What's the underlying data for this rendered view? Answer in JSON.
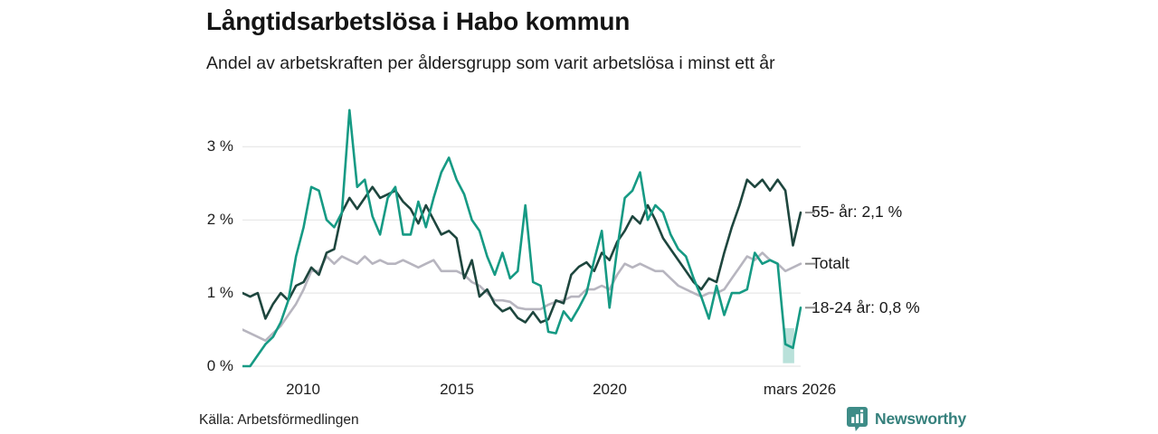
{
  "header": {
    "title": "Långtidsarbetslösa i Habo kommun",
    "subtitle": "Andel av arbetskraften per åldersgrupp som varit arbetslösa i minst ett år"
  },
  "footer": {
    "source": "Källa: Arbetsförmedlingen",
    "brand": "Newsworthy",
    "brand_color": "#35807c",
    "logo_icon": "bar-chart-speech-bubble",
    "logo_fill": "#3e8c87"
  },
  "chart_data": {
    "type": "line",
    "x_start": 2008.0,
    "x_step": 0.25,
    "xlim": [
      2008.0,
      2026.25
    ],
    "ylim": [
      0,
      3.77
    ],
    "grid": true,
    "grid_color": "#e2e2e2",
    "connector_color": "#8f8f8f",
    "legend_position": "right-end-labels",
    "yticks": [
      {
        "value": 3,
        "label": "3 %"
      },
      {
        "value": 2,
        "label": "2 %"
      },
      {
        "value": 1,
        "label": "1 %"
      },
      {
        "value": 0,
        "label": "0 %"
      }
    ],
    "xticks": [
      {
        "x": 2010,
        "label": "2010"
      },
      {
        "x": 2015,
        "label": "2015"
      },
      {
        "x": 2020,
        "label": "2020"
      },
      {
        "x": 2026.22,
        "label": "mars 2026"
      }
    ],
    "series": [
      {
        "name": "Totalt",
        "end_label": "Totalt",
        "end_value": 1.4,
        "color": "#b7b5bf",
        "values": [
          0.5,
          0.45,
          0.4,
          0.35,
          0.45,
          0.55,
          0.7,
          0.85,
          1.05,
          1.3,
          1.3,
          1.5,
          1.4,
          1.5,
          1.45,
          1.4,
          1.5,
          1.4,
          1.45,
          1.4,
          1.4,
          1.45,
          1.4,
          1.35,
          1.4,
          1.45,
          1.3,
          1.3,
          1.3,
          1.25,
          1.15,
          1.1,
          1.0,
          0.9,
          0.9,
          0.88,
          0.8,
          0.78,
          0.78,
          0.78,
          0.84,
          0.88,
          0.9,
          0.95,
          0.95,
          1.05,
          1.05,
          1.1,
          1.05,
          1.25,
          1.4,
          1.35,
          1.4,
          1.35,
          1.3,
          1.3,
          1.2,
          1.1,
          1.05,
          1.0,
          0.95,
          1.0,
          1.0,
          1.05,
          1.2,
          1.35,
          1.5,
          1.45,
          1.55,
          1.45,
          1.4,
          1.3,
          1.35,
          1.4
        ]
      },
      {
        "name": "55- år",
        "end_label": "55- år: 2,1 %",
        "end_value": 2.1,
        "color": "#1e463e",
        "values": [
          1.0,
          0.95,
          1.0,
          0.65,
          0.85,
          1.0,
          0.9,
          1.1,
          1.15,
          1.35,
          1.25,
          1.55,
          1.6,
          2.1,
          2.3,
          2.15,
          2.3,
          2.45,
          2.3,
          2.35,
          2.4,
          2.25,
          2.15,
          1.95,
          2.2,
          2.0,
          1.8,
          1.85,
          1.75,
          1.2,
          1.45,
          0.95,
          1.05,
          0.85,
          0.75,
          0.8,
          0.66,
          0.6,
          0.74,
          0.6,
          0.64,
          0.9,
          0.86,
          1.25,
          1.36,
          1.42,
          1.3,
          1.55,
          1.45,
          1.7,
          1.85,
          2.05,
          1.95,
          2.2,
          2.0,
          1.75,
          1.6,
          1.45,
          1.3,
          1.15,
          1.05,
          1.2,
          1.15,
          1.55,
          1.9,
          2.2,
          2.55,
          2.45,
          2.55,
          2.4,
          2.55,
          2.4,
          1.65,
          2.1
        ]
      },
      {
        "name": "18-24 år",
        "end_label": "18-24 år: 0,8 %",
        "end_value": 0.8,
        "color": "#169a84",
        "values": [
          0.0,
          0.0,
          0.15,
          0.3,
          0.4,
          0.6,
          0.9,
          1.5,
          1.9,
          2.45,
          2.4,
          2.0,
          1.9,
          2.1,
          3.5,
          2.45,
          2.55,
          2.05,
          1.8,
          2.3,
          2.45,
          1.8,
          1.8,
          2.25,
          1.9,
          2.3,
          2.65,
          2.85,
          2.55,
          2.35,
          2.0,
          1.85,
          1.5,
          1.25,
          1.55,
          1.2,
          1.3,
          2.2,
          1.15,
          1.1,
          0.47,
          0.45,
          0.75,
          0.62,
          0.8,
          1.0,
          1.45,
          1.85,
          0.8,
          1.6,
          2.3,
          2.4,
          2.65,
          2.0,
          2.2,
          2.1,
          1.8,
          1.6,
          1.5,
          1.2,
          0.95,
          0.65,
          1.1,
          0.7,
          1.0,
          1.0,
          1.05,
          1.55,
          1.4,
          1.45,
          1.4,
          0.3,
          0.25,
          0.8
        ]
      }
    ],
    "highlight_band": {
      "series": "18-24 år",
      "x0": 2025.67,
      "x1": 2026.04,
      "top": 0.52,
      "bottom": 0.04,
      "color": "#169a84",
      "opacity": 0.3
    }
  }
}
